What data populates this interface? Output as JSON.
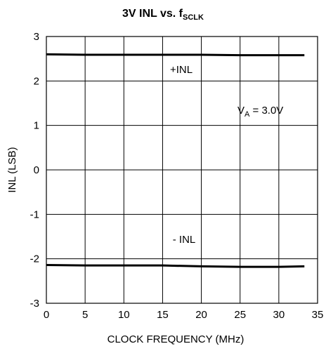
{
  "chart_data": {
    "type": "line",
    "title_main": "3V INL vs. f",
    "title_sub": "SCLK",
    "xlabel": "CLOCK FREQUENCY (MHz)",
    "ylabel": "INL (LSB)",
    "xlim": [
      0,
      35
    ],
    "ylim": [
      -3,
      3
    ],
    "x_ticks": [
      "0",
      "5",
      "10",
      "15",
      "20",
      "25",
      "30",
      "35"
    ],
    "y_ticks": [
      "3",
      "2",
      "1",
      "0",
      "-1",
      "-2",
      "-3"
    ],
    "grid": true,
    "series": [
      {
        "name": "+INL",
        "x": [
          0,
          5,
          10,
          15,
          20,
          25,
          30,
          33.3
        ],
        "y": [
          2.6,
          2.59,
          2.59,
          2.59,
          2.59,
          2.58,
          2.58,
          2.58
        ]
      },
      {
        "name": "- INL",
        "x": [
          0,
          5,
          10,
          15,
          20,
          25,
          30,
          33.3
        ],
        "y": [
          -2.14,
          -2.15,
          -2.15,
          -2.15,
          -2.17,
          -2.18,
          -2.18,
          -2.17
        ]
      }
    ],
    "annotations": {
      "plus_label": "+INL",
      "minus_label": "- INL",
      "va_main": "V",
      "va_sub": "A",
      "va_value": " = 3.0V"
    }
  }
}
